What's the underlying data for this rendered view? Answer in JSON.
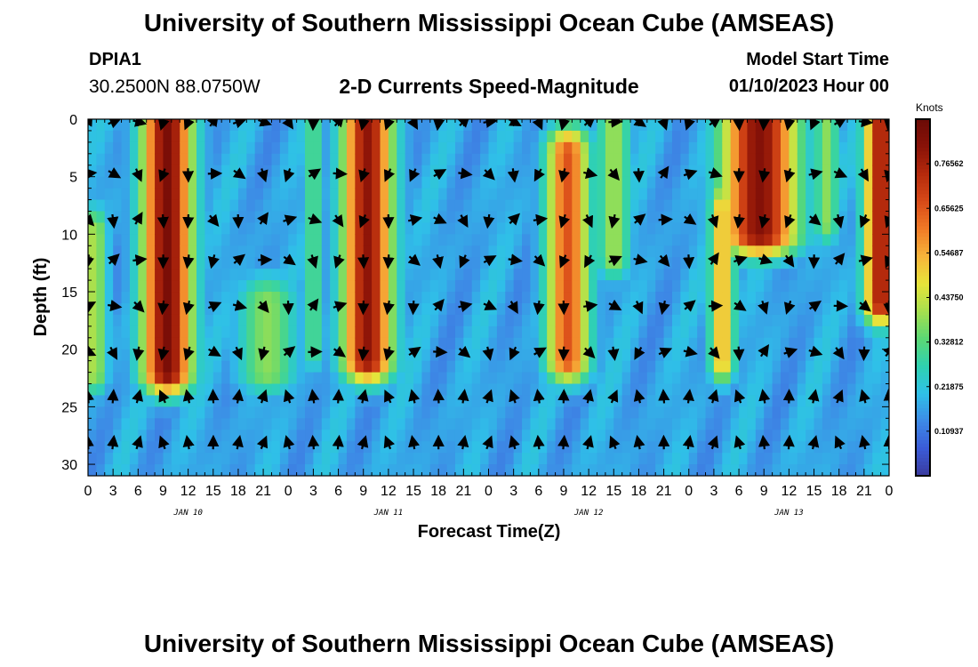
{
  "header": {
    "title": "University of Southern Mississippi Ocean Cube (AMSEAS)",
    "station": "DPIA1",
    "coords": "30.2500N  88.0750W",
    "subtitle": "2-D Currents Speed-Magnitude",
    "model_start_label": "Model Start Time",
    "model_start_time": "01/10/2023 Hour 00"
  },
  "footer": {
    "title": "University of Southern Mississippi Ocean Cube (AMSEAS)"
  },
  "chart_data": {
    "type": "heatmap",
    "title": "2-D Currents Speed-Magnitude",
    "xlabel": "Forecast Time(Z)",
    "ylabel": "Depth (ft)",
    "x_range_hours": [
      0,
      96
    ],
    "ylim": [
      0,
      31
    ],
    "y_ticks": [
      0,
      5,
      10,
      15,
      20,
      25,
      30
    ],
    "x_ticks": [
      {
        "h": 0,
        "label": "0"
      },
      {
        "h": 3,
        "label": "3"
      },
      {
        "h": 6,
        "label": "6"
      },
      {
        "h": 9,
        "label": "9"
      },
      {
        "h": 12,
        "label": "12"
      },
      {
        "h": 15,
        "label": "15"
      },
      {
        "h": 18,
        "label": "18"
      },
      {
        "h": 21,
        "label": "21"
      },
      {
        "h": 24,
        "label": "0"
      },
      {
        "h": 27,
        "label": "3"
      },
      {
        "h": 30,
        "label": "6"
      },
      {
        "h": 33,
        "label": "9"
      },
      {
        "h": 36,
        "label": "12"
      },
      {
        "h": 39,
        "label": "15"
      },
      {
        "h": 42,
        "label": "18"
      },
      {
        "h": 45,
        "label": "21"
      },
      {
        "h": 48,
        "label": "0"
      },
      {
        "h": 51,
        "label": "3"
      },
      {
        "h": 54,
        "label": "6"
      },
      {
        "h": 57,
        "label": "9"
      },
      {
        "h": 60,
        "label": "12"
      },
      {
        "h": 63,
        "label": "15"
      },
      {
        "h": 66,
        "label": "18"
      },
      {
        "h": 69,
        "label": "21"
      },
      {
        "h": 72,
        "label": "0"
      },
      {
        "h": 75,
        "label": "3"
      },
      {
        "h": 78,
        "label": "6"
      },
      {
        "h": 81,
        "label": "9"
      },
      {
        "h": 84,
        "label": "12"
      },
      {
        "h": 87,
        "label": "15"
      },
      {
        "h": 90,
        "label": "18"
      },
      {
        "h": 93,
        "label": "21"
      },
      {
        "h": 96,
        "label": "0"
      }
    ],
    "day_labels": [
      {
        "h": 12,
        "label": "JAN 10"
      },
      {
        "h": 36,
        "label": "JAN 11"
      },
      {
        "h": 60,
        "label": "JAN 12"
      },
      {
        "h": 84,
        "label": "JAN 13"
      }
    ],
    "colorbar": {
      "title": "Knots",
      "min": 0,
      "max": 0.875,
      "ticks": [
        "0.10937",
        "0.21875",
        "0.32812",
        "0.43750",
        "0.54687",
        "0.65625",
        "0.76562"
      ],
      "colors": [
        "#3a3b9e",
        "#3b5bd8",
        "#3d8be6",
        "#2fc0e8",
        "#2fd2b0",
        "#5bd874",
        "#a6e04e",
        "#e8e43a",
        "#f7b43a",
        "#f07a26",
        "#d84a18",
        "#b42a0c",
        "#8a1208",
        "#6b0a06"
      ]
    },
    "speed_peaks_knots": [
      {
        "t": 9.5,
        "w": 3.0,
        "top": 0,
        "bot": 22,
        "val": 0.84
      },
      {
        "t": 33.5,
        "w": 3.0,
        "top": 0,
        "bot": 21,
        "val": 0.8
      },
      {
        "t": 57.5,
        "w": 2.6,
        "top": 3,
        "bot": 21,
        "val": 0.66
      },
      {
        "t": 80.5,
        "w": 4.5,
        "top": 0,
        "bot": 10,
        "val": 0.82
      },
      {
        "t": 76.0,
        "w": 1.5,
        "top": 8,
        "bot": 21,
        "val": 0.55
      },
      {
        "t": 95.0,
        "w": 2.0,
        "top": 0,
        "bot": 16,
        "val": 0.78
      },
      {
        "t": 0.8,
        "w": 1.5,
        "top": 10,
        "bot": 22,
        "val": 0.42
      },
      {
        "t": 21.5,
        "w": 3.5,
        "top": 16,
        "bot": 22,
        "val": 0.38
      },
      {
        "t": 63.0,
        "w": 2.0,
        "top": 0,
        "bot": 12,
        "val": 0.4
      },
      {
        "t": 27.0,
        "w": 1.2,
        "top": 0,
        "bot": 20,
        "val": 0.33
      },
      {
        "t": 88.5,
        "w": 1.5,
        "top": 0,
        "bot": 9,
        "val": 0.38
      }
    ],
    "arrow_depths_ft": [
      0,
      4.5,
      8.5,
      12,
      16,
      20,
      24,
      28
    ],
    "arrow_times_h": [
      0,
      3,
      6,
      9,
      12,
      15,
      18,
      21,
      24,
      27,
      30,
      33,
      36,
      39,
      42,
      45,
      48,
      51,
      54,
      57,
      60,
      63,
      66,
      69,
      72,
      75,
      78,
      81,
      84,
      87,
      90,
      93,
      96
    ],
    "arrow_direction_rule": "ebb (southward) during high-speed bands, flood (northward) near bottom after peaks"
  }
}
